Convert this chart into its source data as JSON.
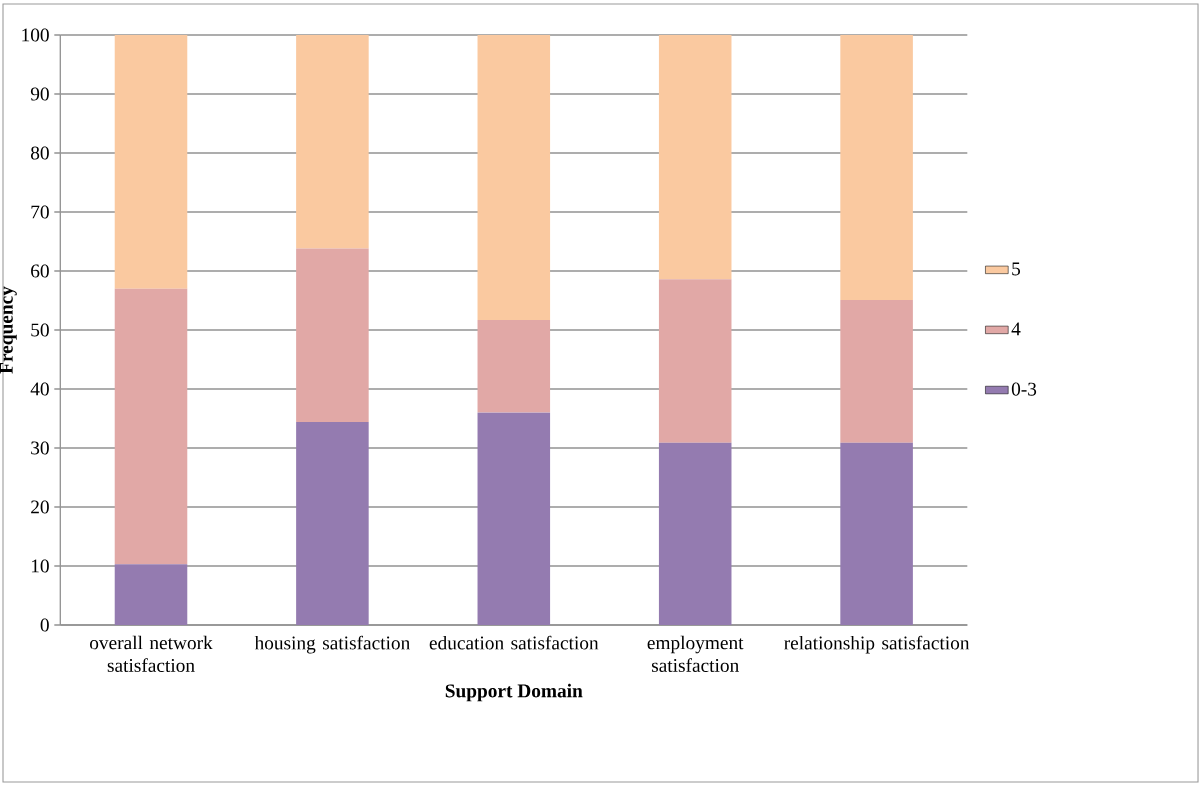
{
  "chart_data": {
    "type": "bar",
    "stacked": true,
    "xlabel": "Support Domain",
    "ylabel": "Frequency",
    "categories": [
      "overall network satisfaction",
      "housing satisfaction",
      "education satisfaction",
      "employment satisfaction",
      "relationship satisfaction"
    ],
    "series": [
      {
        "name": "0-3",
        "color": "#947bb0",
        "values": [
          10.3,
          34.4,
          36.0,
          30.9,
          30.9
        ]
      },
      {
        "name": "4",
        "color": "#e1a8a6",
        "values": [
          46.7,
          29.4,
          15.7,
          27.7,
          24.2
        ]
      },
      {
        "name": "5",
        "color": "#fac9a0",
        "values": [
          43.0,
          36.2,
          48.3,
          41.4,
          44.9
        ]
      }
    ],
    "ylim": [
      0,
      100
    ],
    "yticks": [
      0,
      10,
      20,
      30,
      40,
      50,
      60,
      70,
      80,
      90,
      100
    ],
    "grid": "y",
    "legend": "right"
  }
}
